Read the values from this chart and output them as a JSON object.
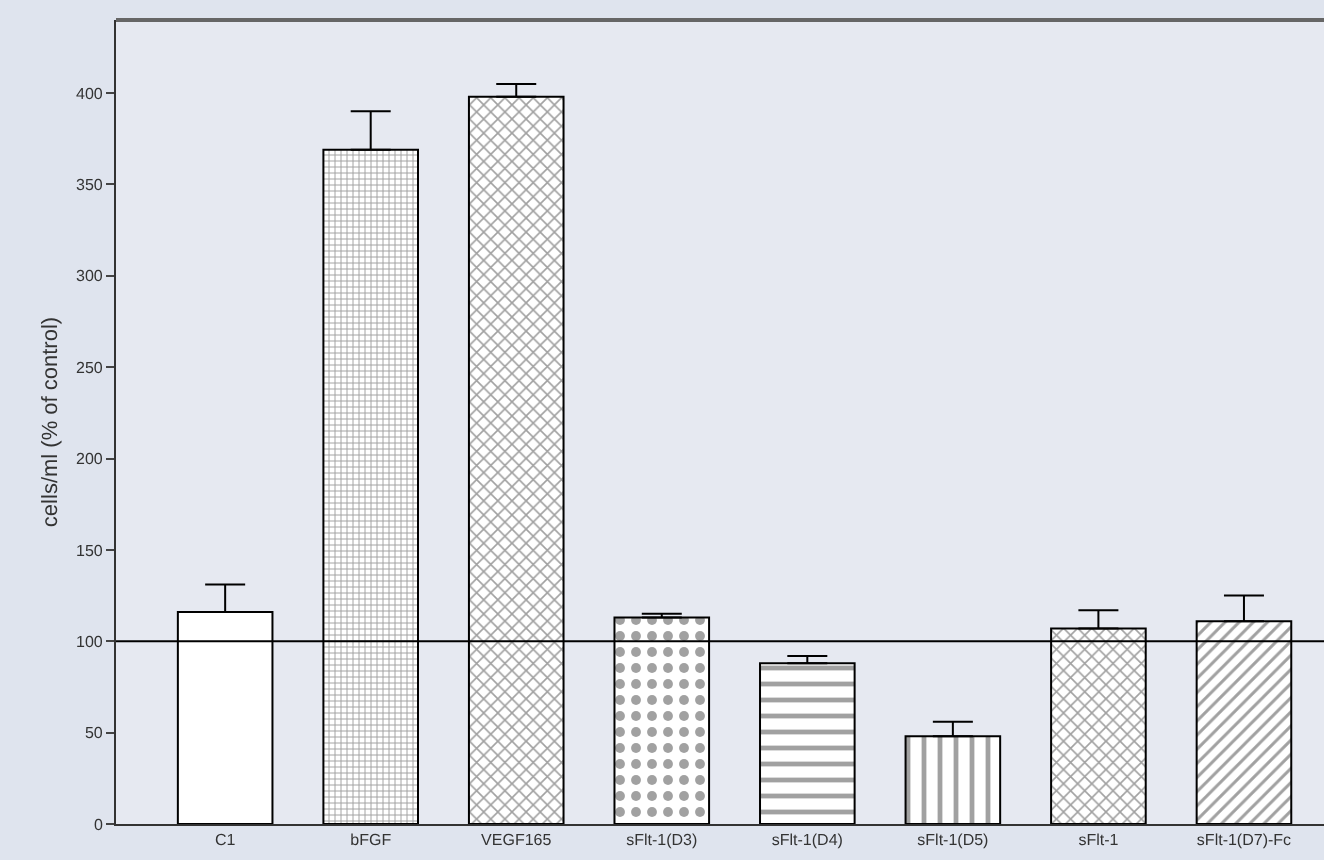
{
  "chart_data": {
    "type": "bar",
    "ylabel": "cells/ml (% of control)",
    "categories": [
      "C1",
      "bFGF",
      "VEGF165",
      "sFlt-1(D3)",
      "sFlt-1(D4)",
      "sFlt-1(D5)",
      "sFlt-1",
      "sFlt-1(D7)-Fc"
    ],
    "values": [
      116,
      369,
      398,
      113,
      88,
      48,
      107,
      111
    ],
    "errors": [
      [
        116,
        131
      ],
      [
        369,
        390
      ],
      [
        398,
        405
      ],
      [
        113,
        115
      ],
      [
        88,
        92
      ],
      [
        48,
        56
      ],
      [
        107,
        117
      ],
      [
        111,
        125
      ]
    ],
    "ylim": [
      0,
      440
    ],
    "yticks": [
      0,
      50,
      100,
      150,
      200,
      250,
      300,
      350,
      400
    ],
    "ref_lines": [
      {
        "axis": "y",
        "value": 100,
        "color": "#000000"
      }
    ]
  }
}
